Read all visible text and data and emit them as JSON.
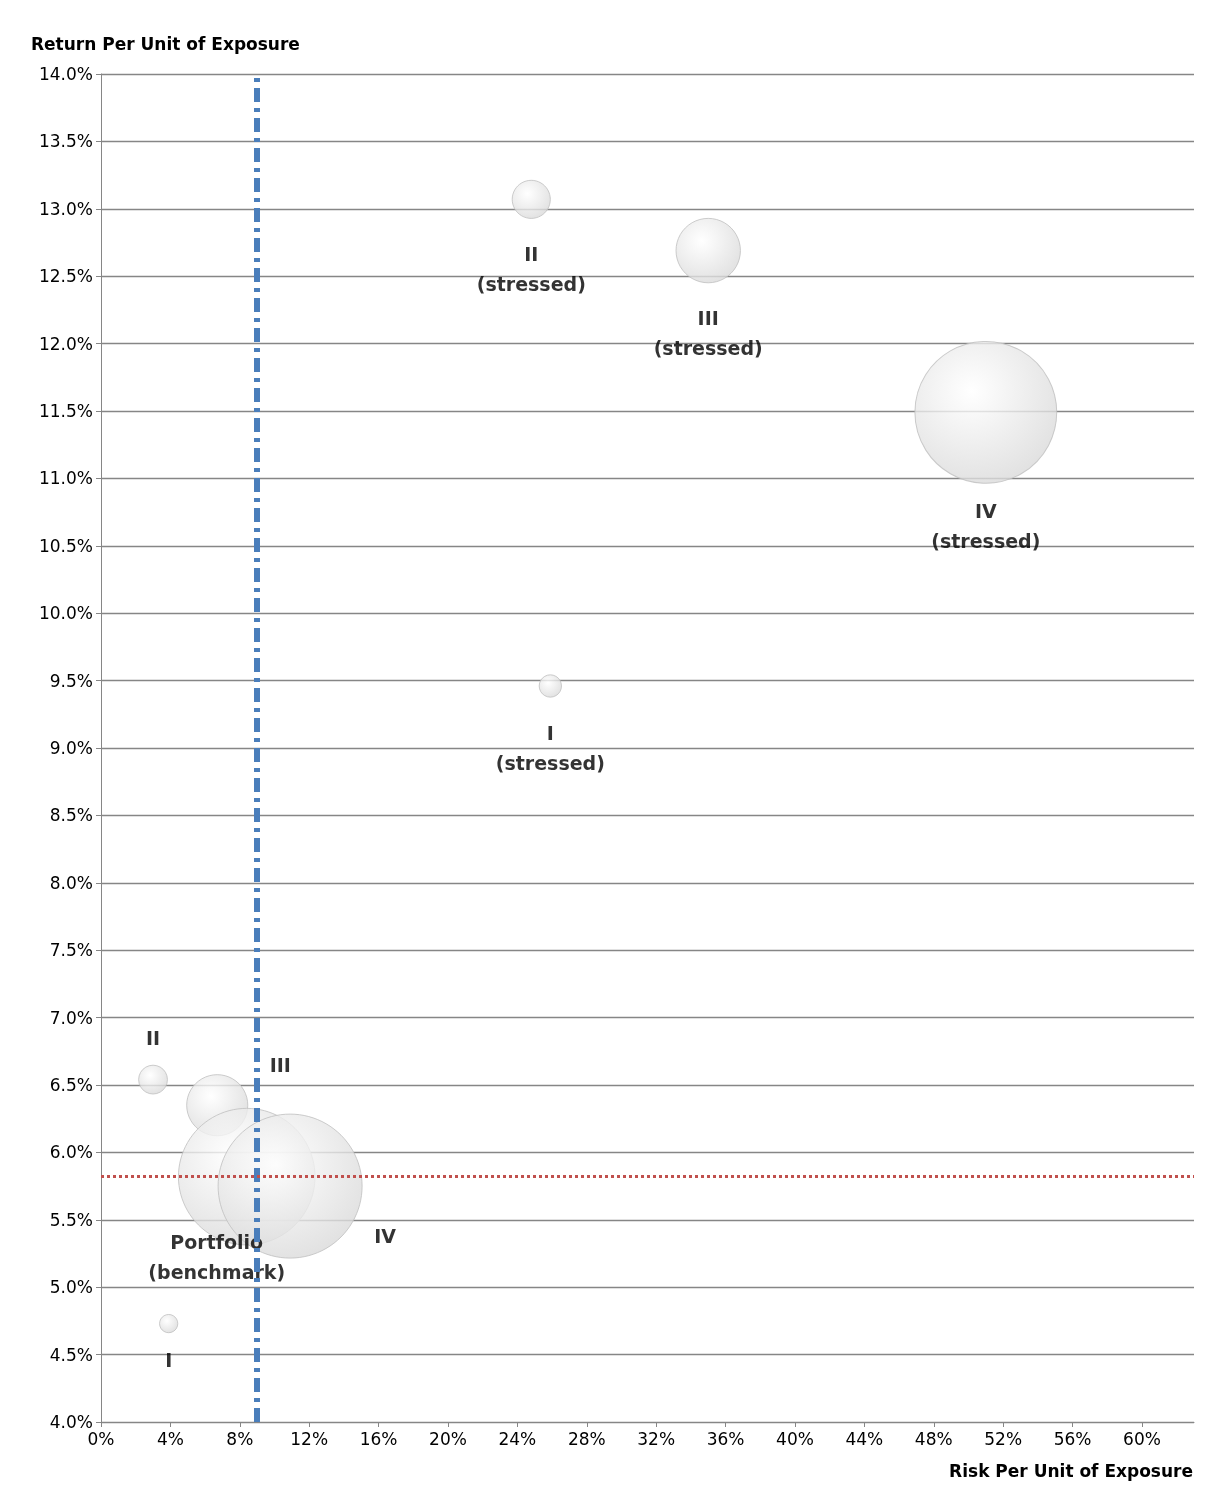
{
  "chart_data": {
    "type": "bubble",
    "xlabel": "Risk Per Unit of Exposure",
    "ylabel": "Return Per Unit of Exposure",
    "xlim": [
      0,
      63
    ],
    "ylim": [
      4,
      14
    ],
    "xticks": [
      {
        "value": 0,
        "label": "0%"
      },
      {
        "value": 4,
        "label": "4%"
      },
      {
        "value": 8,
        "label": "8%"
      },
      {
        "value": 12,
        "label": "12%"
      },
      {
        "value": 16,
        "label": "16%"
      },
      {
        "value": 20,
        "label": "20%"
      },
      {
        "value": 24,
        "label": "24%"
      },
      {
        "value": 28,
        "label": "28%"
      },
      {
        "value": 32,
        "label": "32%"
      },
      {
        "value": 36,
        "label": "36%"
      },
      {
        "value": 40,
        "label": "40%"
      },
      {
        "value": 44,
        "label": "44%"
      },
      {
        "value": 48,
        "label": "48%"
      },
      {
        "value": 52,
        "label": "52%"
      },
      {
        "value": 56,
        "label": "56%"
      },
      {
        "value": 60,
        "label": "60%"
      }
    ],
    "yticks": [
      {
        "value": 4,
        "label": "4.0%"
      },
      {
        "value": 4.5,
        "label": "4.5%"
      },
      {
        "value": 5,
        "label": "5.0%"
      },
      {
        "value": 5.5,
        "label": "5.5%"
      },
      {
        "value": 6,
        "label": "6.0%"
      },
      {
        "value": 6.5,
        "label": "6.5%"
      },
      {
        "value": 7,
        "label": "7.0%"
      },
      {
        "value": 7.5,
        "label": "7.5%"
      },
      {
        "value": 8,
        "label": "8.0%"
      },
      {
        "value": 8.5,
        "label": "8.5%"
      },
      {
        "value": 9,
        "label": "9.0%"
      },
      {
        "value": 9.5,
        "label": "9.5%"
      },
      {
        "value": 10,
        "label": "10.0%"
      },
      {
        "value": 10.5,
        "label": "10.5%"
      },
      {
        "value": 11,
        "label": "11.0%"
      },
      {
        "value": 11.5,
        "label": "11.5%"
      },
      {
        "value": 12,
        "label": "12.0%"
      },
      {
        "value": 12.5,
        "label": "12.5%"
      },
      {
        "value": 13,
        "label": "13.0%"
      },
      {
        "value": 13.5,
        "label": "13.5%"
      },
      {
        "value": 14,
        "label": "14.0%"
      }
    ],
    "grid": "y",
    "legend": false,
    "series": [
      {
        "name": "I",
        "color": "#d9d9d9",
        "x": [
          3.9
        ],
        "values": [
          4.73
        ],
        "sizes": [
          0.016
        ]
      },
      {
        "name": "II",
        "color": "#d9d9d9",
        "x": [
          3.0
        ],
        "values": [
          6.54
        ],
        "sizes": [
          0.04
        ]
      },
      {
        "name": "III",
        "color": "#d9d9d9",
        "x": [
          6.7
        ],
        "values": [
          6.35
        ],
        "sizes": [
          0.18
        ]
      },
      {
        "name": "Portfolio (benchmark)",
        "color": "#d9d9d9",
        "x": [
          8.4
        ],
        "values": [
          5.82
        ],
        "sizes": [
          0.9
        ]
      },
      {
        "name": "IV",
        "color": "#d9d9d9",
        "x": [
          10.9
        ],
        "values": [
          5.75
        ],
        "sizes": [
          1
        ]
      },
      {
        "name": "I (stressed)",
        "color": "#d9d9d9",
        "x": [
          25.9
        ],
        "values": [
          9.46
        ],
        "sizes": [
          0.024
        ]
      },
      {
        "name": "II (stressed)",
        "color": "#d9d9d9",
        "x": [
          24.8
        ],
        "values": [
          13.07
        ],
        "sizes": [
          0.07
        ]
      },
      {
        "name": "III (stressed)",
        "color": "#d9d9d9",
        "x": [
          35.0
        ],
        "values": [
          12.69
        ],
        "sizes": [
          0.2
        ]
      },
      {
        "name": "IV (stressed)",
        "color": "#d9d9d9",
        "x": [
          51.0
        ],
        "values": [
          11.49
        ],
        "sizes": [
          0.97
        ]
      }
    ],
    "ref_lines": [
      {
        "axis": "x",
        "value": 9,
        "color": "#4a7ebb",
        "line_style": "dashed"
      },
      {
        "axis": "y",
        "value": 5.82,
        "color": "#c0504d",
        "line_style": "dotted"
      }
    ]
  }
}
